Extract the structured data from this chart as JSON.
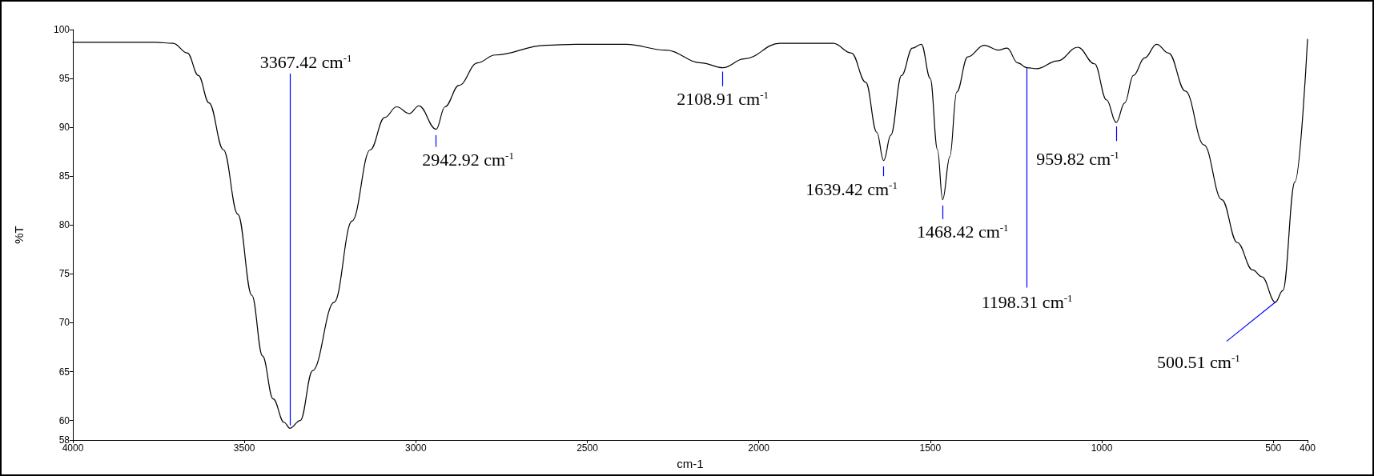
{
  "chart_data": {
    "type": "line",
    "xlabel": "cm-1",
    "ylabel": "%T",
    "xlim": [
      4000,
      400
    ],
    "xticks": [
      4000,
      3500,
      3000,
      2500,
      2000,
      1500,
      1000,
      500,
      400
    ],
    "ylim": [
      58,
      100
    ],
    "yticks": [
      58,
      60,
      65,
      70,
      75,
      80,
      85,
      90,
      95,
      100
    ],
    "grid": false,
    "marker": "none",
    "line_style": "solid",
    "series": [
      {
        "color": "#000000",
        "x": [
          4000,
          3759,
          3708,
          3666,
          3634,
          3603,
          3561,
          3519,
          3478,
          3447,
          3416,
          3384,
          3367,
          3337,
          3301,
          3238,
          3186,
          3133,
          3091,
          3056,
          3019,
          2991,
          2941,
          2915,
          2874,
          2820,
          2769,
          2622,
          2533,
          2387,
          2272,
          2168,
          2105,
          2043,
          1939,
          1783,
          1730,
          1688,
          1656,
          1636,
          1615,
          1584,
          1552,
          1526,
          1500,
          1479,
          1464,
          1443,
          1423,
          1391,
          1343,
          1302,
          1276,
          1245,
          1218,
          1190,
          1129,
          1070,
          1021,
          986,
          958,
          933,
          908,
          875,
          840,
          805,
          756,
          702,
          650,
          605,
          560,
          533,
          494,
          472,
          437,
          400
        ],
        "values": [
          98.7,
          98.7,
          98.6,
          97.6,
          95.3,
          92.5,
          87.7,
          81.1,
          72.8,
          66.6,
          62.2,
          59.8,
          59.2,
          60.0,
          65.1,
          72.1,
          80.4,
          87.7,
          91.0,
          92.1,
          91.4,
          92.2,
          89.8,
          92.1,
          94.3,
          96.6,
          97.4,
          98.4,
          98.5,
          98.5,
          97.9,
          96.6,
          96.1,
          97.0,
          98.6,
          98.6,
          97.6,
          94.6,
          89.5,
          86.6,
          89.2,
          95.3,
          98.1,
          98.5,
          95.0,
          87.7,
          82.6,
          87.0,
          93.6,
          97.2,
          98.4,
          97.9,
          98.1,
          96.6,
          96.1,
          96.0,
          96.8,
          98.2,
          96.5,
          92.8,
          90.5,
          92.5,
          95.3,
          97.1,
          98.5,
          97.6,
          93.7,
          88.2,
          82.6,
          78.2,
          75.4,
          74.7,
          72.1,
          73.3,
          84.4,
          99.0
        ]
      }
    ],
    "annotations": [
      {
        "text": "3367.42 cm$^{-1}$",
        "x": 3367,
        "y": 59.2
      },
      {
        "text": "2942.92 cm$^{-1}$",
        "x": 2941,
        "y": 89.8
      },
      {
        "text": "2108.91 cm$^{-1}$",
        "x": 2105,
        "y": 96.1
      },
      {
        "text": "1639.42 cm$^{-1}$",
        "x": 1636,
        "y": 86.6
      },
      {
        "text": "1468.42 cm$^{-1}$",
        "x": 1464,
        "y": 82.6
      },
      {
        "text": "1198.31 cm$^{-1}$",
        "x": 1218,
        "y": 96.1
      },
      {
        "text": "959.82 cm$^{-1}$",
        "x": 958,
        "y": 90.5
      },
      {
        "text": "500.51 cm$^{-1}$",
        "x": 494,
        "y": 72.1
      }
    ]
  }
}
